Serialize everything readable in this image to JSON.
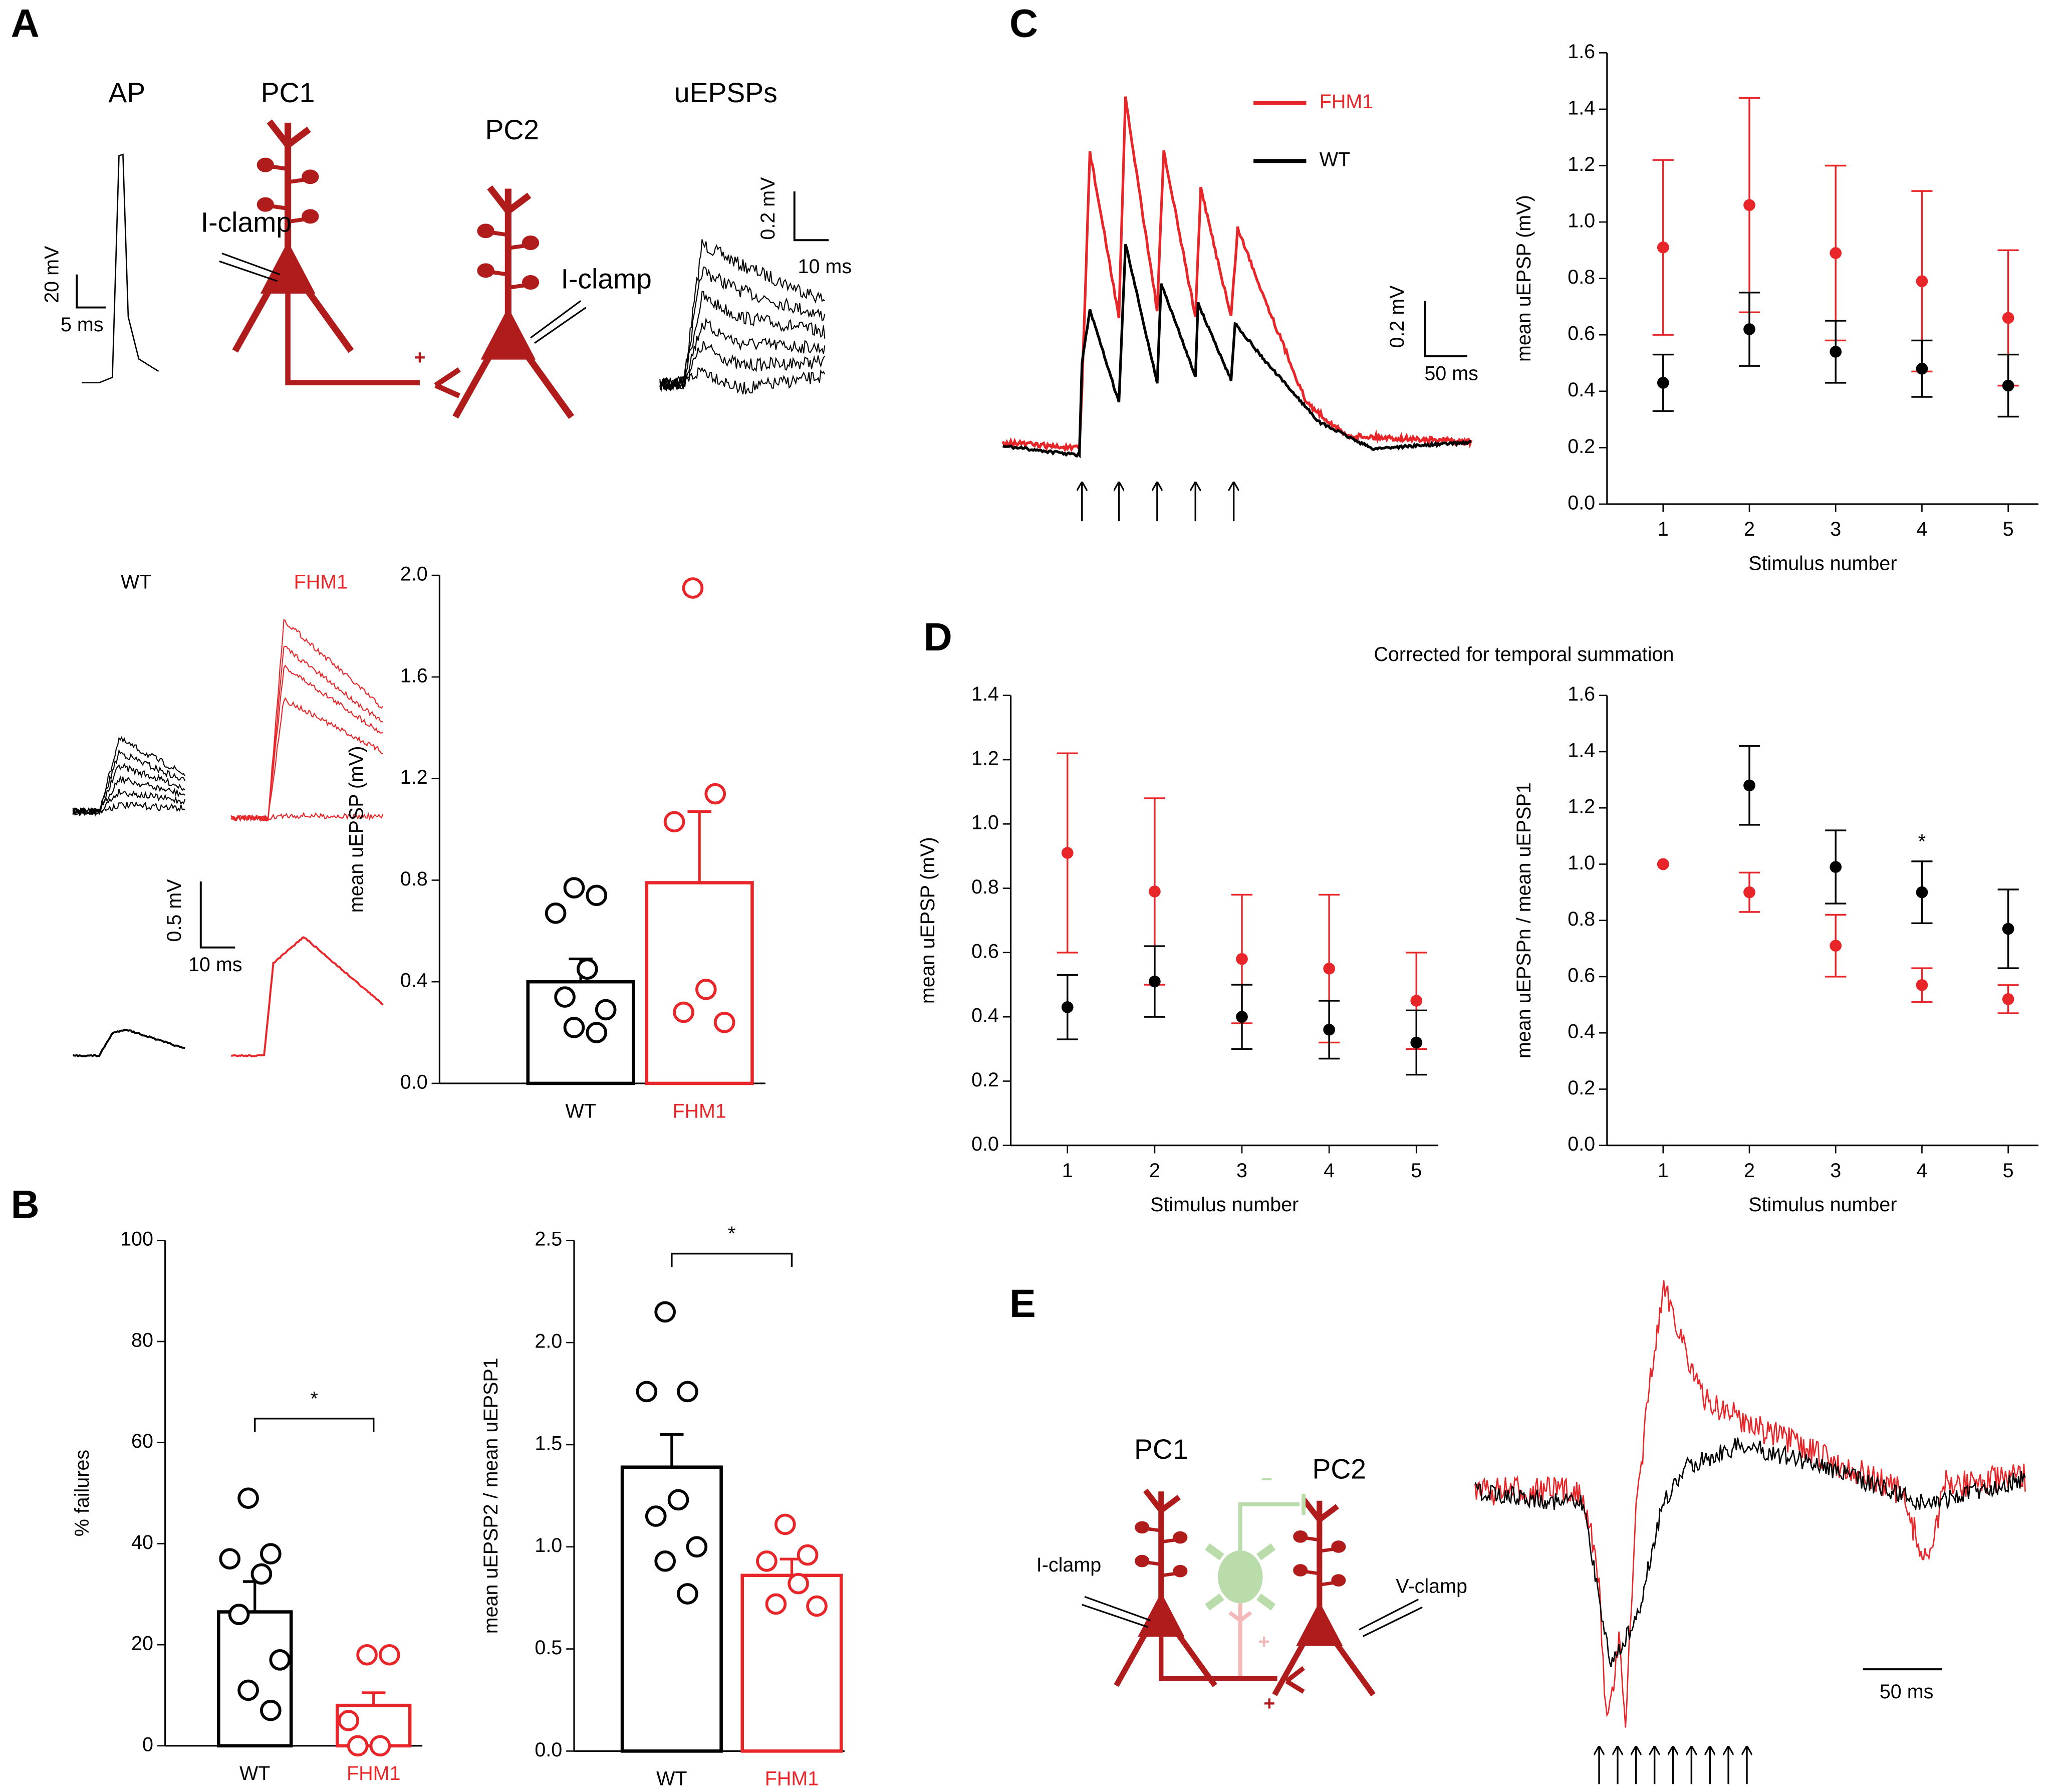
{
  "labels": {
    "panel_a": "A",
    "panel_b": "B",
    "panel_c": "C",
    "panel_d": "D",
    "panel_e": "E",
    "ap": "AP",
    "pc1": "PC1",
    "pc2": "PC2",
    "uepsps": "uEPSPs",
    "iclamp_pc1": "I-clamp",
    "iclamp_pc2": "I-clamp",
    "a_plus": "+",
    "ap_scale_v": "20 mV",
    "ap_scale_t": "5 ms",
    "uepsp_scale_v": "0.2 mV",
    "uepsp_scale_t": "10 ms",
    "wt": "WT",
    "fhm1": "FHM1",
    "avg_scale_v": "0.5 mV",
    "avg_scale_t": "10 ms",
    "c_scale_v": "0.2 mV",
    "c_scale_t": "50 ms",
    "d_title": "Corrected for temporal summation",
    "e_pc1": "PC1",
    "e_pc2": "PC2",
    "e_iclamp": "I-clamp",
    "e_vclamp": "V-clamp",
    "e_plus": "+",
    "e_minus": "−",
    "e_inter_plus": "+",
    "e_scale_t": "50 ms"
  },
  "chart_data": [
    {
      "type": "bar",
      "ylabel": "mean uEPSP (mV)",
      "categories": [
        "WT",
        "FHM1"
      ],
      "colors": [
        "#000000",
        "#e8262a"
      ],
      "values": [
        0.4,
        0.79
      ],
      "errors": [
        0.09,
        0.28
      ],
      "points": [
        [
          0.77,
          0.74,
          0.67,
          0.45,
          0.34,
          0.29,
          0.22,
          0.2
        ],
        [
          1.95,
          1.14,
          1.03,
          0.37,
          0.28,
          0.24
        ]
      ],
      "ylim": [
        0,
        2
      ],
      "yticks": [
        {
          "value": 0,
          "label": "0.0"
        },
        0.4,
        0.8,
        1.2,
        1.6,
        {
          "value": 2,
          "label": "2.0"
        }
      ]
    },
    {
      "type": "bar",
      "ylabel": "% failures",
      "categories": [
        "WT",
        "FHM1"
      ],
      "colors": [
        "#000000",
        "#e8262a"
      ],
      "values": [
        26.5,
        8
      ],
      "errors": [
        6,
        2.5
      ],
      "points": [
        [
          49,
          38,
          37,
          34,
          26,
          17,
          11,
          7
        ],
        [
          18,
          18,
          5,
          0,
          0
        ]
      ],
      "ylim": [
        0,
        100
      ],
      "yticks": [
        0,
        20,
        40,
        60,
        80,
        100
      ],
      "significance": "*"
    },
    {
      "type": "bar",
      "ylabel": "mean uEPSP2 / mean uEPSP1",
      "categories": [
        "WT",
        "FHM1"
      ],
      "colors": [
        "#000000",
        "#e8262a"
      ],
      "values": [
        1.39,
        0.86
      ],
      "errors": [
        0.16,
        0.08
      ],
      "points": [
        [
          2.15,
          1.76,
          1.76,
          1.23,
          1.15,
          1.0,
          0.93,
          0.77
        ],
        [
          1.11,
          0.96,
          0.93,
          0.82,
          0.72,
          0.71
        ]
      ],
      "ylim": [
        0,
        2.5
      ],
      "yticks": [
        {
          "value": 0,
          "label": "0.0"
        },
        0.5,
        {
          "value": 1,
          "label": "1.0"
        },
        1.5,
        {
          "value": 2,
          "label": "2.0"
        },
        2.5
      ],
      "significance": "*"
    },
    {
      "type": "errorbar",
      "ylabel": "mean uEPSP (mV)",
      "xlabel": "Stimulus number",
      "x": [
        1,
        2,
        3,
        4,
        5
      ],
      "xlim": [
        0.35,
        5.35
      ],
      "xticks": [
        1,
        2,
        3,
        4,
        5
      ],
      "ylim": [
        0,
        1.6
      ],
      "yticks": [
        {
          "value": 0,
          "label": "0.0"
        },
        0.2,
        0.4,
        0.6,
        0.8,
        {
          "value": 1,
          "label": "1.0"
        },
        1.2,
        1.4,
        1.6
      ],
      "series": [
        {
          "name": "FHM1",
          "color": "#e8262a",
          "values": [
            0.91,
            1.06,
            0.89,
            0.79,
            0.66
          ],
          "errors": [
            0.31,
            0.38,
            0.31,
            0.32,
            0.24
          ]
        },
        {
          "name": "WT",
          "color": "#000000",
          "values": [
            0.43,
            0.62,
            0.54,
            0.48,
            0.42
          ],
          "errors": [
            0.1,
            0.13,
            0.11,
            0.1,
            0.11
          ]
        }
      ]
    },
    {
      "type": "errorbar",
      "ylabel": "mean uEPSP (mV)",
      "xlabel": "Stimulus number",
      "x": [
        1,
        2,
        3,
        4,
        5
      ],
      "xlim": [
        0.35,
        5.25
      ],
      "xticks": [
        1,
        2,
        3,
        4,
        5
      ],
      "ylim": [
        0,
        1.4
      ],
      "yticks": [
        {
          "value": 0,
          "label": "0.0"
        },
        0.2,
        0.4,
        0.6,
        0.8,
        {
          "value": 1,
          "label": "1.0"
        },
        1.2,
        1.4
      ],
      "series": [
        {
          "color": "#e8262a",
          "values": [
            0.91,
            0.79,
            0.58,
            0.55,
            0.45
          ],
          "errors": [
            0.31,
            0.29,
            0.2,
            0.23,
            0.15
          ]
        },
        {
          "color": "#000000",
          "values": [
            0.43,
            0.51,
            0.4,
            0.36,
            0.32
          ],
          "errors": [
            0.1,
            0.11,
            0.1,
            0.09,
            0.1
          ]
        }
      ]
    },
    {
      "type": "errorbar",
      "ylabel": "mean uEPSPn / mean uEPSP1",
      "xlabel": "Stimulus number",
      "x": [
        1,
        2,
        3,
        4,
        5
      ],
      "xlim": [
        0.35,
        5.35
      ],
      "xticks": [
        1,
        2,
        3,
        4,
        5
      ],
      "ylim": [
        0,
        1.6
      ],
      "yticks": [
        {
          "value": 0,
          "label": "0.0"
        },
        0.2,
        0.4,
        0.6,
        0.8,
        {
          "value": 1,
          "label": "1.0"
        },
        1.2,
        1.4,
        1.6
      ],
      "series": [
        {
          "color": "#000000",
          "values": [
            1.0,
            1.28,
            0.99,
            0.9,
            0.77
          ],
          "errors": [
            null,
            0.14,
            0.13,
            0.11,
            0.14
          ]
        },
        {
          "color": "#e8262a",
          "values": [
            1.0,
            0.9,
            0.71,
            0.57,
            0.52
          ],
          "errors": [
            null,
            0.07,
            0.11,
            0.06,
            0.05
          ]
        }
      ],
      "annotations": [
        {
          "x": 4,
          "text": "*"
        }
      ]
    }
  ]
}
